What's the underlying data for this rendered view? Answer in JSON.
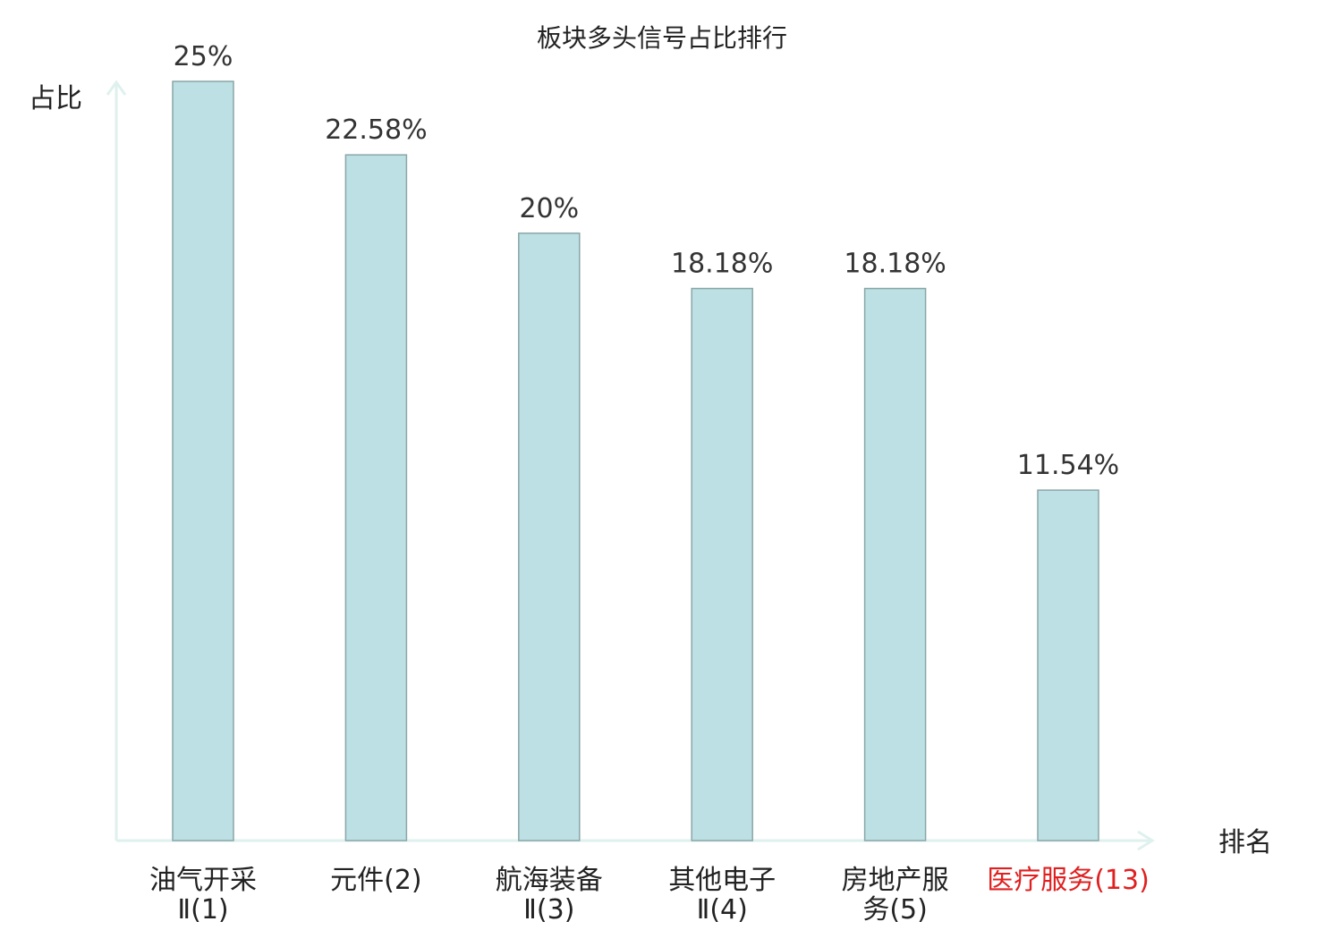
{
  "chart_data": {
    "type": "bar",
    "title": "板块多头信号占比排行",
    "xlabel": "排名",
    "ylabel": "占比",
    "ylim": [
      0,
      25
    ],
    "categories": [
      {
        "lines": [
          "油气开采",
          "Ⅱ(1)"
        ]
      },
      {
        "lines": [
          "元件(2)"
        ]
      },
      {
        "lines": [
          "航海装备",
          "Ⅱ(3)"
        ]
      },
      {
        "lines": [
          "其他电子",
          "Ⅱ(4)"
        ]
      },
      {
        "lines": [
          "房地产服",
          "务(5)"
        ]
      },
      {
        "lines": [
          "医疗服务(13)"
        ],
        "highlight": true
      }
    ],
    "values": [
      25,
      22.58,
      20,
      18.18,
      18.18,
      11.54
    ],
    "value_labels": [
      "25%",
      "22.58%",
      "20%",
      "18.18%",
      "18.18%",
      "11.54%"
    ],
    "grid": false,
    "legend": "none"
  },
  "colors": {
    "bar_fill": "#bce0e3",
    "bar_stroke": "#8aa6a8",
    "axis": "#dff1ee",
    "highlight_text": "#e02020"
  }
}
